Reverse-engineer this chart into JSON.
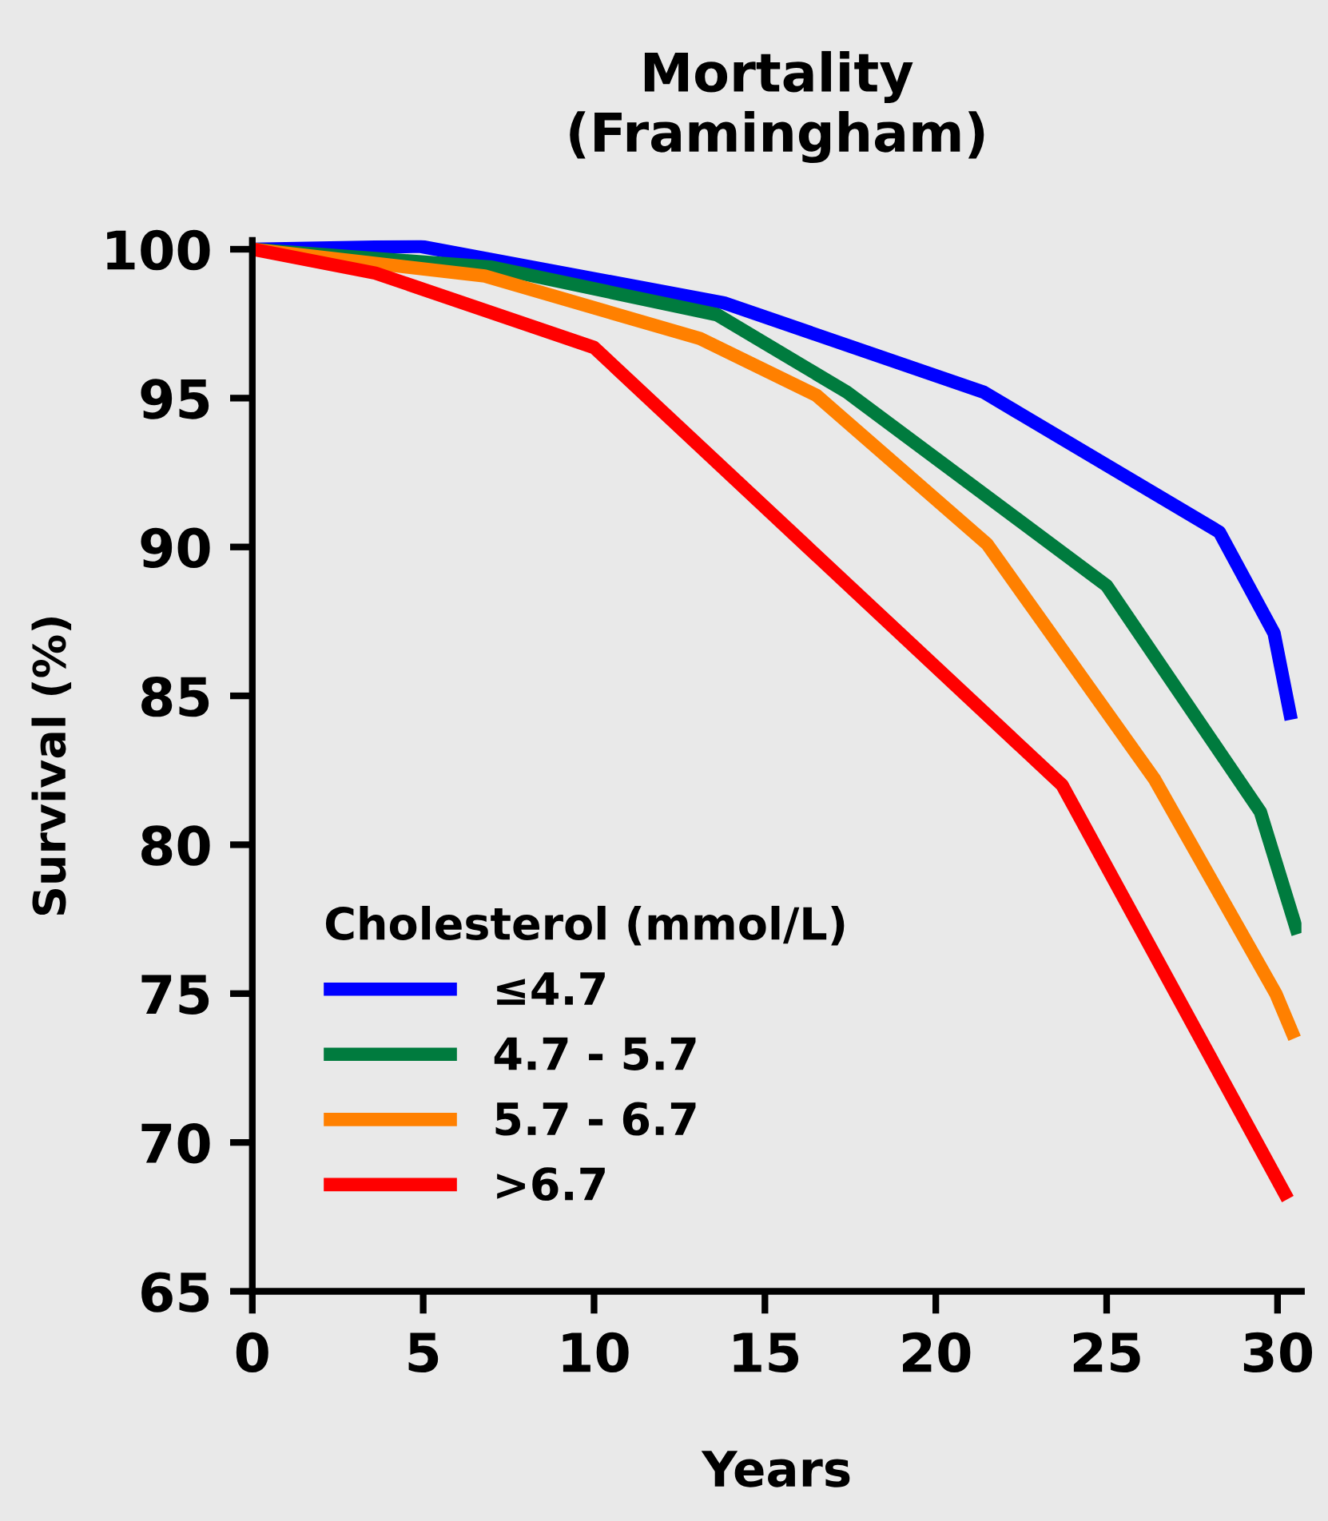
{
  "chart_data": {
    "type": "line",
    "title": "Mortality\n(Framingham)",
    "xlabel": "Years",
    "ylabel": "Survival (%)",
    "legend_title": "Cholesterol (mmol/L)",
    "legend": "bottom left",
    "grid": false,
    "marker": "none",
    "line_style": "solid",
    "xlim": [
      0,
      30.7
    ],
    "xticks": [
      0,
      5,
      10,
      15,
      20,
      25,
      30
    ],
    "ylim": [
      65,
      100.3
    ],
    "yticks": [
      65,
      70,
      75,
      80,
      85,
      90,
      95,
      100
    ],
    "series": [
      {
        "name": "≤4.7",
        "color": "#0000ff",
        "x": [
          0,
          4.9,
          13.8,
          21.4,
          28.3,
          29.9,
          30.4
        ],
        "values": [
          100,
          100.1,
          98.2,
          95.2,
          90.5,
          87.1,
          84.2
        ]
      },
      {
        "name": "4.7 - 5.7",
        "color": "#007b3e",
        "x": [
          0,
          7,
          13.6,
          17.4,
          25.0,
          29.5,
          30.6
        ],
        "values": [
          100,
          99.4,
          97.8,
          95.2,
          88.7,
          81.1,
          77.0
        ]
      },
      {
        "name": "5.7 - 6.7",
        "color": "#ff8000",
        "x": [
          0,
          6.8,
          13.1,
          16.5,
          21.5,
          26.4,
          29.95,
          30.5
        ],
        "values": [
          100,
          99.1,
          97.0,
          95.1,
          90.1,
          82.2,
          75.0,
          73.5
        ]
      },
      {
        "name": ">6.7",
        "color": "#ff0000",
        "x": [
          0,
          3.6,
          10.0,
          23.7,
          30.3
        ],
        "values": [
          100,
          99.2,
          96.7,
          82.0,
          68.1
        ]
      }
    ]
  }
}
